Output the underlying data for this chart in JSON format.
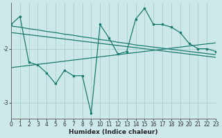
{
  "xlabel": "Humidex (Indice chaleur)",
  "background_color": "#cce8e8",
  "grid_color": "#aacfcf",
  "line_color": "#1a7a6e",
  "x_data": [
    0,
    1,
    2,
    3,
    4,
    5,
    6,
    7,
    8,
    9,
    10,
    11,
    12,
    13,
    14,
    15,
    16,
    17,
    18,
    19,
    20,
    21,
    22,
    23
  ],
  "y_main": [
    -1.55,
    -1.4,
    -2.25,
    -2.3,
    -2.45,
    -2.65,
    -2.4,
    -2.5,
    -2.5,
    -3.2,
    -1.55,
    -1.8,
    -2.1,
    -2.05,
    -1.45,
    -1.25,
    -1.55,
    -1.55,
    -1.6,
    -1.7,
    -1.9,
    -2.0,
    -2.0,
    -2.05
  ],
  "y_env1": [
    -1.58,
    -1.6,
    -1.63,
    -1.65,
    -1.68,
    -1.7,
    -1.73,
    -1.75,
    -1.78,
    -1.8,
    -1.83,
    -1.85,
    -1.88,
    -1.9,
    -1.93,
    -1.95,
    -1.97,
    -1.99,
    -2.01,
    -2.03,
    -2.05,
    -2.07,
    -2.09,
    -2.11
  ],
  "y_env2": [
    -1.7,
    -1.72,
    -1.74,
    -1.76,
    -1.78,
    -1.8,
    -1.82,
    -1.84,
    -1.86,
    -1.88,
    -1.9,
    -1.92,
    -1.94,
    -1.96,
    -1.98,
    -2.0,
    -2.02,
    -2.04,
    -2.06,
    -2.08,
    -2.1,
    -2.12,
    -2.14,
    -2.16
  ],
  "y_env3": [
    -2.35,
    -2.33,
    -2.31,
    -2.29,
    -2.27,
    -2.25,
    -2.23,
    -2.21,
    -2.19,
    -2.17,
    -2.15,
    -2.13,
    -2.11,
    -2.09,
    -2.07,
    -2.05,
    -2.03,
    -2.01,
    -1.99,
    -1.97,
    -1.95,
    -1.93,
    -1.91,
    -1.89
  ],
  "xlim": [
    0,
    23
  ],
  "ylim": [
    -3.3,
    -1.15
  ],
  "yticks": [
    -3.0,
    -2.0
  ],
  "xticks": [
    0,
    1,
    2,
    3,
    4,
    5,
    6,
    7,
    8,
    9,
    10,
    11,
    12,
    13,
    14,
    15,
    16,
    17,
    18,
    19,
    20,
    21,
    22,
    23
  ],
  "tick_fontsize": 5.5,
  "xlabel_fontsize": 6.5
}
